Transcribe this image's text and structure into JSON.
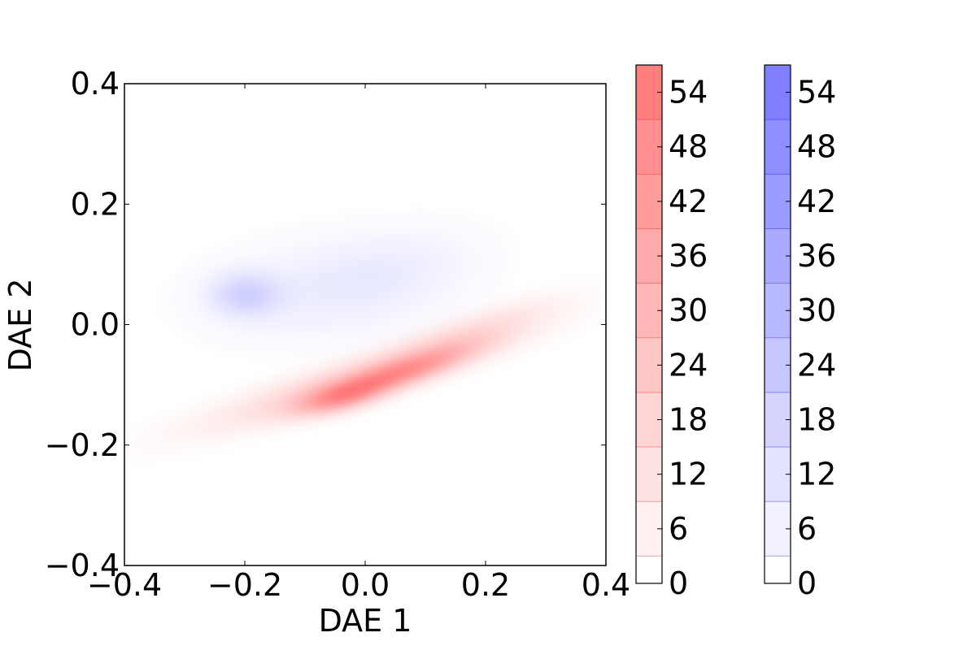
{
  "chart_data": {
    "type": "heatmap",
    "title": "",
    "xlabel": "DAE 1",
    "ylabel": "DAE 2",
    "xlim": [
      -0.4,
      0.4
    ],
    "ylim": [
      -0.4,
      0.4
    ],
    "x_ticks": [
      -0.4,
      -0.2,
      0.0,
      0.2,
      0.4
    ],
    "x_tick_labels": [
      "−0.4",
      "−0.2",
      "0.0",
      "0.2",
      "0.4"
    ],
    "y_ticks": [
      -0.4,
      -0.2,
      0.0,
      0.2,
      0.4
    ],
    "y_tick_labels": [
      "−0.4",
      "−0.2",
      "0.0",
      "0.2",
      "0.4"
    ],
    "grid": false,
    "series": [
      {
        "color": "#ff0000",
        "clusters": [
          {
            "x": -0.01,
            "y": -0.09,
            "sx": 0.17,
            "sy": 0.055,
            "corr": 0.9,
            "peak": 20
          },
          {
            "x": 0.06,
            "y": -0.08,
            "sx": 0.08,
            "sy": 0.03,
            "corr": 0.85,
            "peak": 30
          },
          {
            "x": -0.04,
            "y": -0.12,
            "sx": 0.05,
            "sy": 0.02,
            "corr": 0.6,
            "peak": 30
          },
          {
            "x": 0.18,
            "y": -0.01,
            "sx": 0.1,
            "sy": 0.04,
            "corr": 0.85,
            "peak": 10
          }
        ]
      },
      {
        "color": "#0000ff",
        "clusters": [
          {
            "x": -0.2,
            "y": 0.05,
            "sx": 0.04,
            "sy": 0.025,
            "corr": 0.0,
            "peak": 16
          },
          {
            "x": -0.06,
            "y": 0.06,
            "sx": 0.14,
            "sy": 0.06,
            "corr": 0.2,
            "peak": 6
          },
          {
            "x": 0.04,
            "y": 0.09,
            "sx": 0.1,
            "sy": 0.05,
            "corr": 0.4,
            "peak": 4
          }
        ]
      }
    ],
    "colorbars": [
      {
        "name": "red",
        "color": "#ff0000",
        "ticks": [
          0,
          6,
          12,
          18,
          24,
          30,
          36,
          42,
          48,
          54
        ],
        "tick_labels": [
          "0",
          "6",
          "12",
          "18",
          "24",
          "30",
          "36",
          "42",
          "48",
          "54"
        ],
        "range": [
          0,
          57
        ],
        "levels": [
          0,
          3,
          9,
          15,
          21,
          27,
          33,
          39,
          45,
          51,
          57
        ]
      },
      {
        "name": "blue",
        "color": "#0000ff",
        "ticks": [
          0,
          6,
          12,
          18,
          24,
          30,
          36,
          42,
          48,
          54
        ],
        "tick_labels": [
          "0",
          "6",
          "12",
          "18",
          "24",
          "30",
          "36",
          "42",
          "48",
          "54"
        ],
        "range": [
          0,
          57
        ],
        "levels": [
          0,
          3,
          9,
          15,
          21,
          27,
          33,
          39,
          45,
          51,
          57
        ]
      }
    ]
  }
}
